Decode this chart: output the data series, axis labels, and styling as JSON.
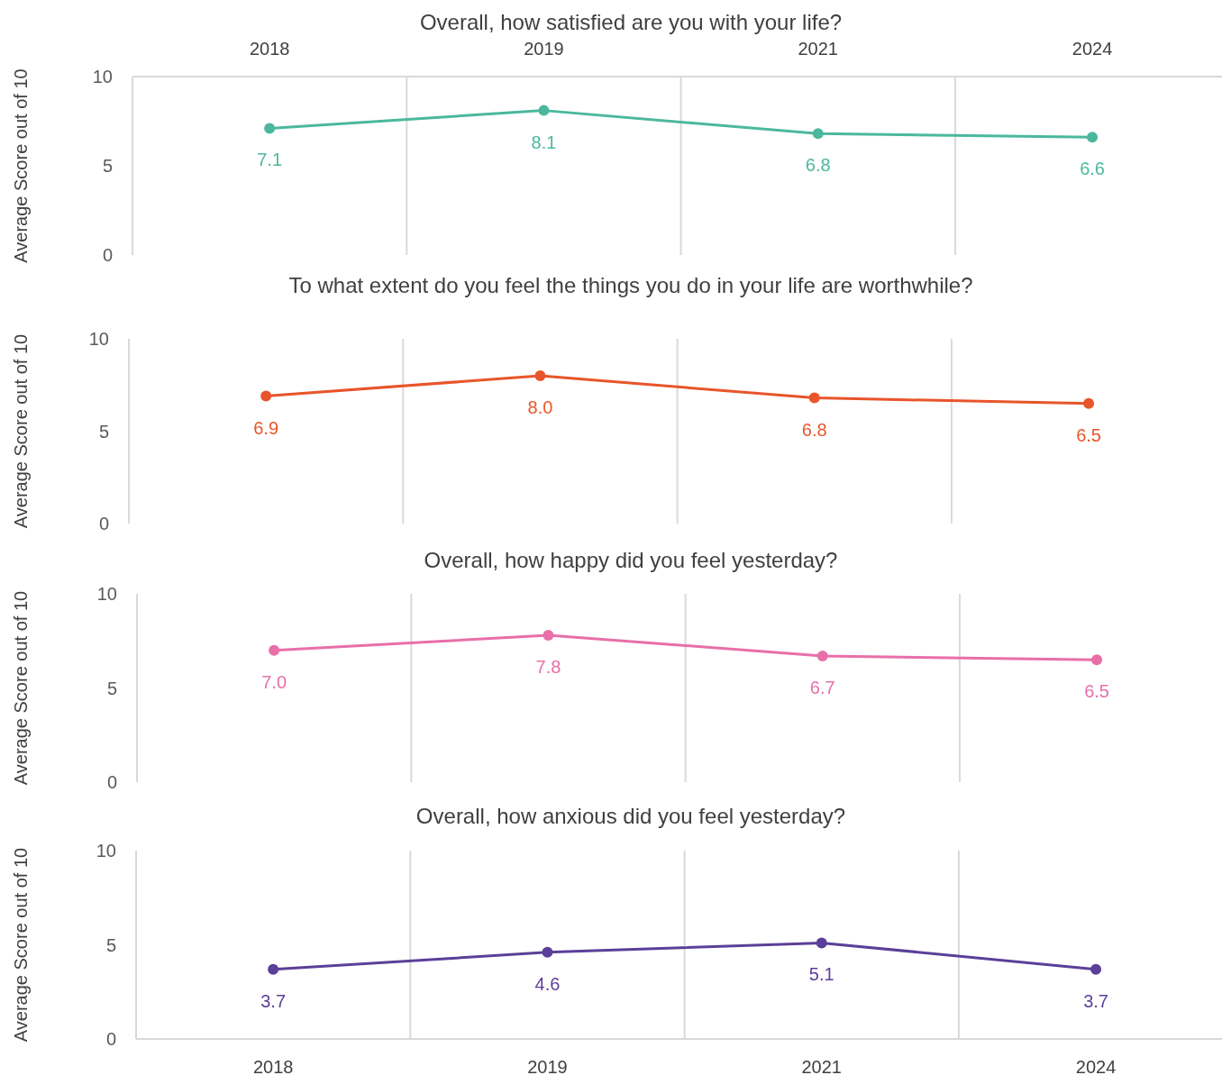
{
  "chart_data": [
    {
      "type": "line",
      "title": "Overall, how satisfied are you with your life?",
      "ylabel": "Average Score out of 10",
      "categories": [
        "2018",
        "2019",
        "2021",
        "2024"
      ],
      "series": [
        {
          "color": "#4bb89e",
          "values": [
            7.1,
            8.1,
            6.8,
            6.6
          ],
          "value_labels": [
            "7.1",
            "8.1",
            "6.8",
            "6.6"
          ]
        }
      ],
      "ylim": [
        0,
        10
      ],
      "yticks": [
        0,
        5,
        10
      ],
      "grid": "x",
      "marker": "circle"
    },
    {
      "type": "line",
      "title": "To what extent do you feel the things you do in your life are worthwhile?",
      "ylabel": "Average Score out of 10",
      "categories": [
        null,
        null,
        null,
        null
      ],
      "series": [
        {
          "color": "#e8552a",
          "values": [
            6.9,
            8.0,
            6.8,
            6.5
          ],
          "value_labels": [
            "6.9",
            "8.0",
            "6.8",
            "6.5"
          ]
        }
      ],
      "ylim": [
        0,
        10
      ],
      "yticks": [
        0,
        5,
        10
      ],
      "grid": "x",
      "marker": "circle",
      "tick_labels": "y"
    },
    {
      "type": "line",
      "title": "Overall, how happy did you feel yesterday?",
      "ylabel": "Average Score out of 10",
      "categories": [
        null,
        null,
        null,
        null
      ],
      "series": [
        {
          "color": "#e86fa8",
          "values": [
            7.0,
            7.8,
            6.7,
            6.5
          ],
          "value_labels": [
            "7.0",
            "7.8",
            "6.7",
            "6.5"
          ]
        }
      ],
      "ylim": [
        0,
        10
      ],
      "yticks": [
        0,
        5,
        10
      ],
      "grid": "x",
      "marker": "circle",
      "tick_labels": "y"
    },
    {
      "type": "line",
      "title": "Overall, how anxious did you feel yesterday?",
      "ylabel": "Average Score out of 10",
      "categories": [
        "2018",
        "2019",
        "2021",
        "2024"
      ],
      "series": [
        {
          "color": "#5b3f99",
          "values": [
            3.7,
            4.6,
            5.1,
            3.7
          ],
          "value_labels": [
            "3.7",
            "4.6",
            "5.1",
            "3.7"
          ]
        }
      ],
      "ylim": [
        0,
        10
      ],
      "yticks": [
        0,
        5,
        10
      ],
      "grid": "x",
      "marker": "circle"
    }
  ]
}
